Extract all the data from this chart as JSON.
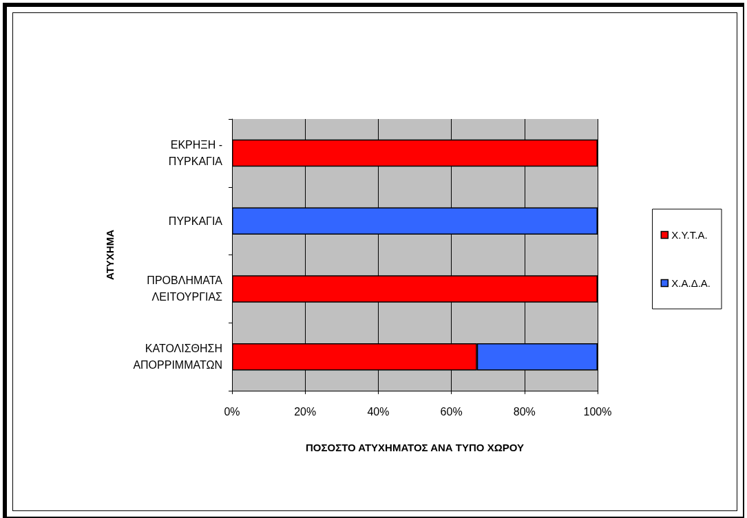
{
  "chart_data": {
    "type": "bar",
    "orientation": "horizontal",
    "stacked": true,
    "xlabel": "ΠΟΣΟΣΤΟ ΑΤΥΧΗΜΑΤΟΣ ΑΝΑ ΤΥΠΟ ΧΩΡΟΥ",
    "ylabel": "ΑΤΥΧΗΜΑ",
    "categories": [
      "ΕΚΡΗΞΗ -\nΠΥΡΚΑΓΙΑ",
      "ΠΥΡΚΑΓΙΑ",
      "ΠΡΟΒΛΗΜΑΤΑ\nΛΕΙΤΟΥΡΓΙΑΣ",
      "ΚΑΤΟΛΙΣΘΗΣΗ\nΑΠΟΡΡΙΜΜΑΤΩΝ"
    ],
    "series": [
      {
        "name": "Χ.Υ.Τ.Α.",
        "color": "#ff0000",
        "values": [
          100,
          null,
          100,
          67
        ]
      },
      {
        "name": "Χ.Α.Δ.Α.",
        "color": "#3366ff",
        "values": [
          null,
          100,
          null,
          33
        ]
      }
    ],
    "xlim": [
      0,
      100
    ],
    "xticks": [
      {
        "value": 0,
        "label": "0%"
      },
      {
        "value": 20,
        "label": "20%"
      },
      {
        "value": 40,
        "label": "40%"
      },
      {
        "value": 60,
        "label": "60%"
      },
      {
        "value": 80,
        "label": "80%"
      },
      {
        "value": 100,
        "label": "100%"
      }
    ],
    "grid": "x",
    "legend": "right"
  }
}
